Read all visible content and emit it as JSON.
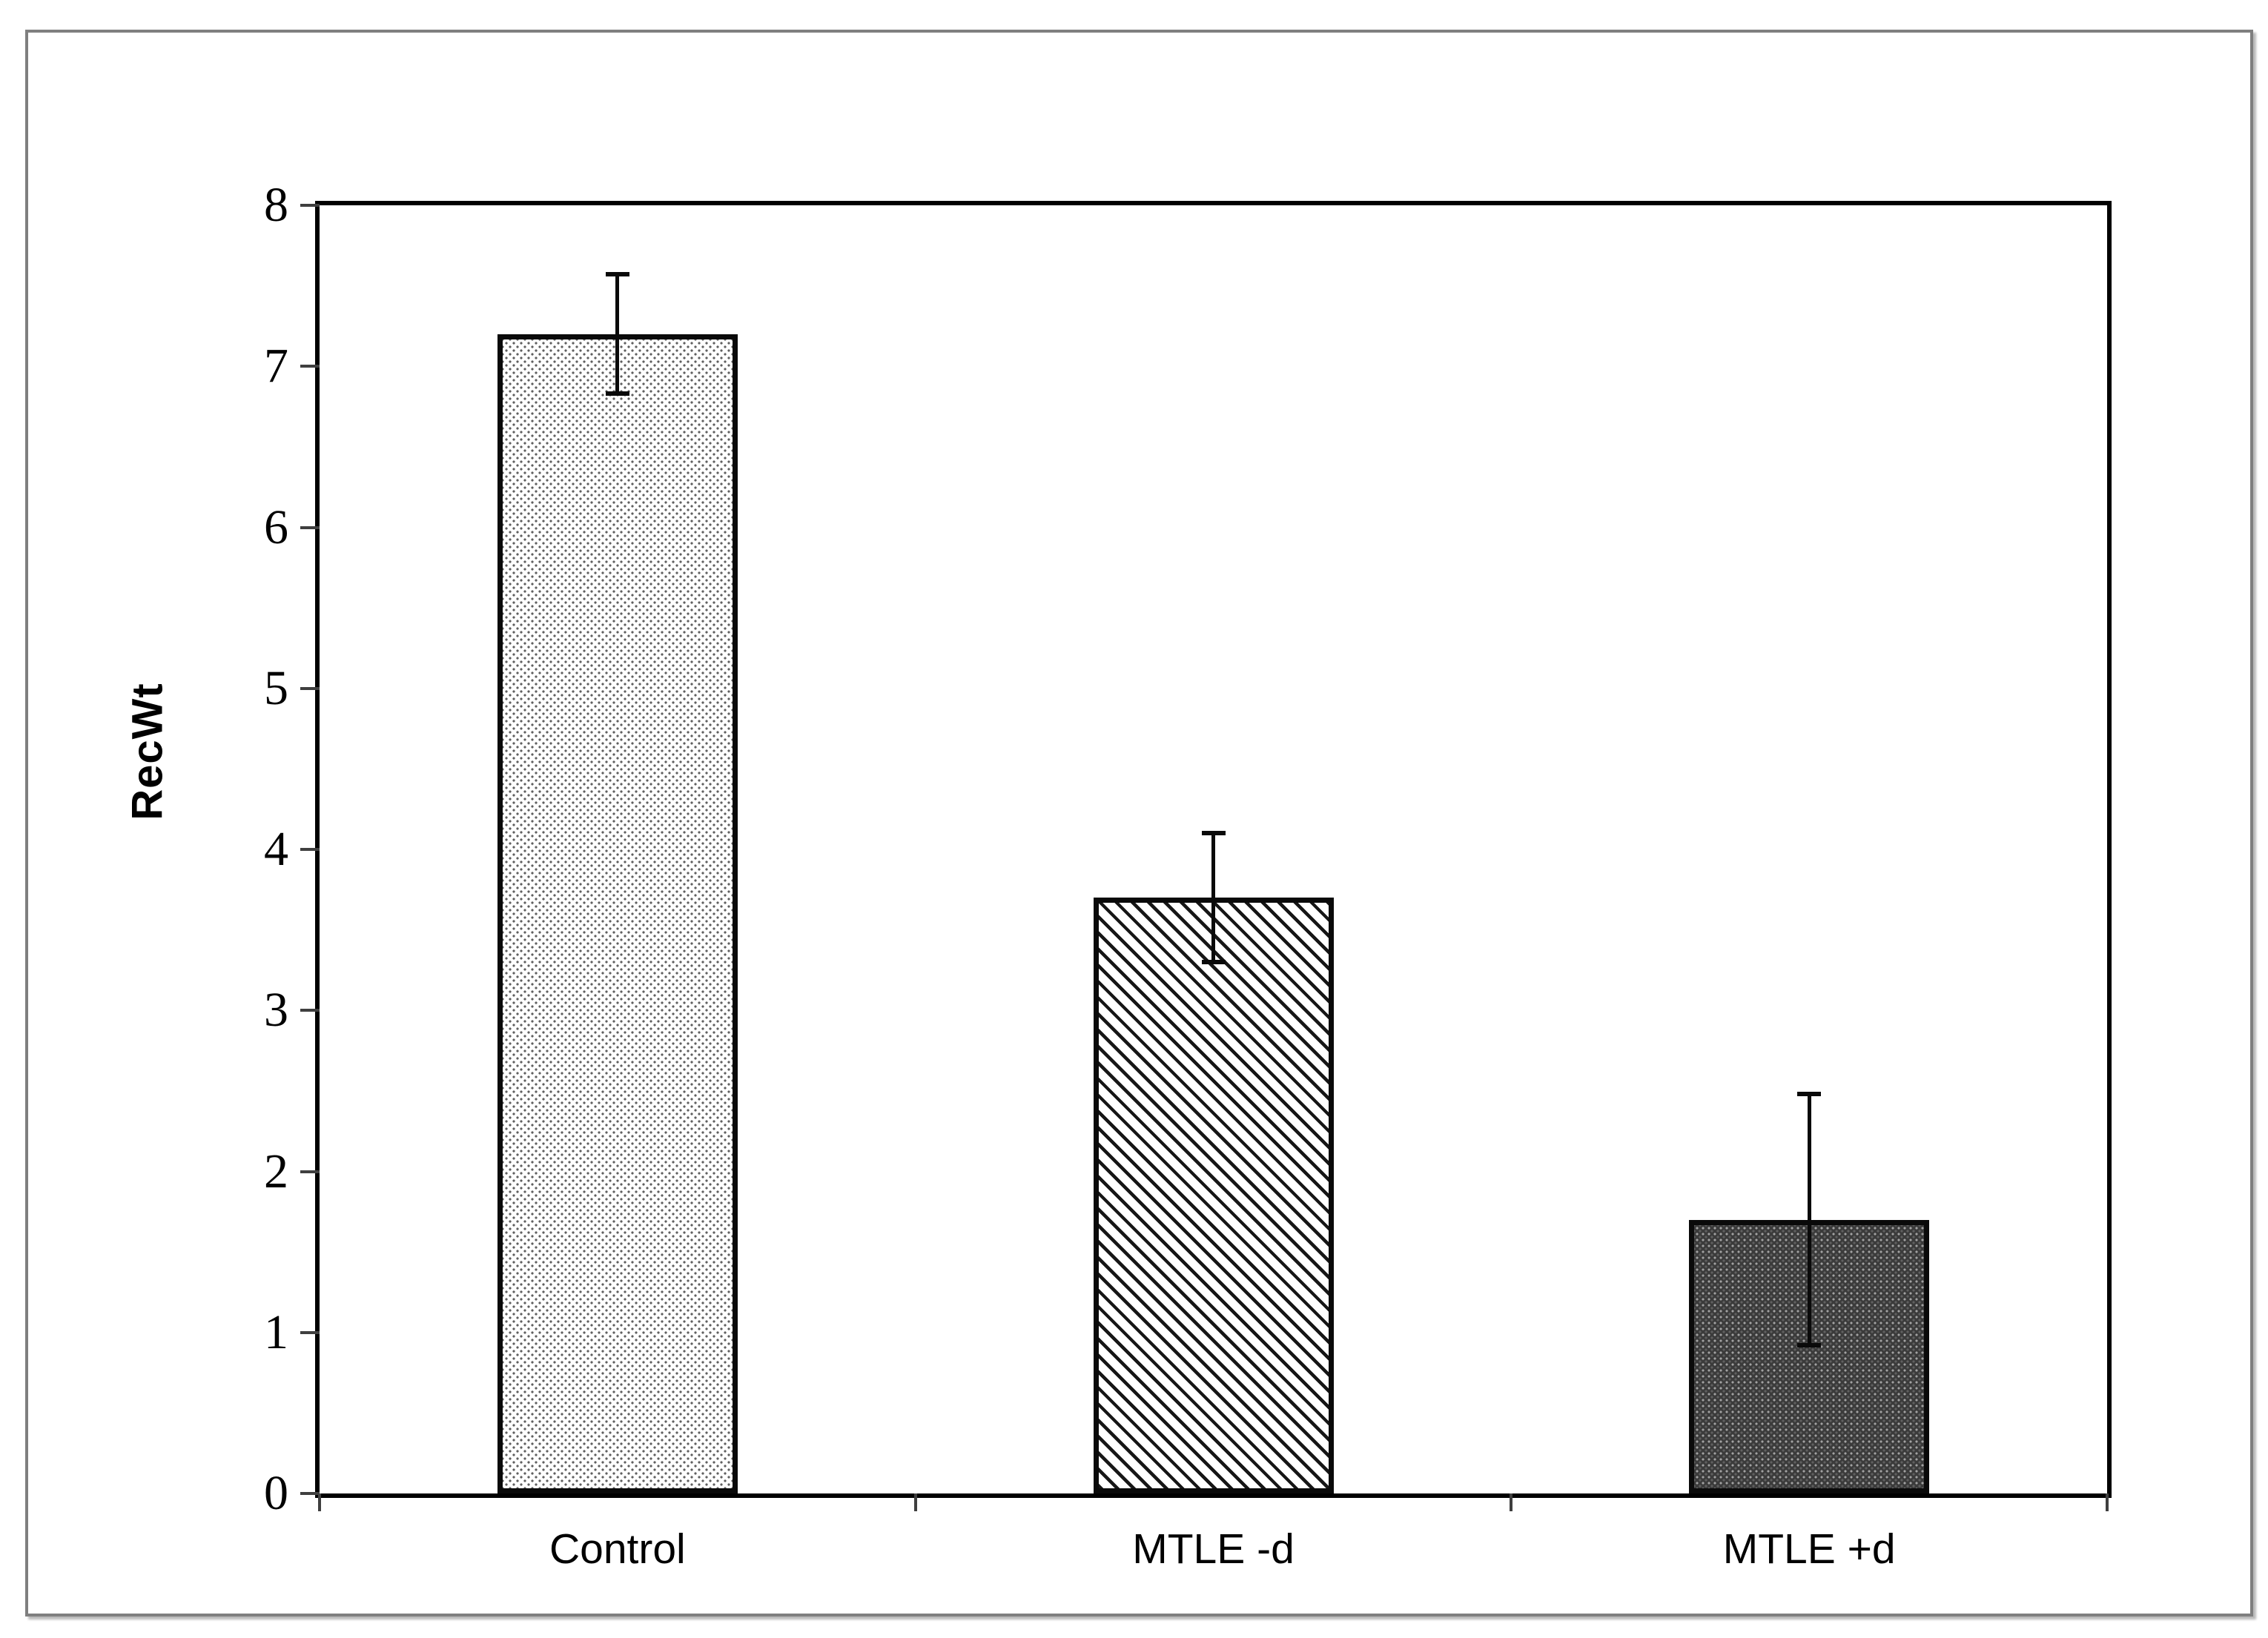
{
  "figure": {
    "background_color": "#ffffff",
    "frame_border_color": "#7f7f7f"
  },
  "chart_data": {
    "type": "bar",
    "title": "",
    "xlabel": "",
    "ylabel": "RecWt",
    "categories": [
      "Control",
      "MTLE -d",
      "MTLE +d"
    ],
    "values": [
      7.2,
      3.7,
      1.7
    ],
    "errors": [
      0.37,
      0.4,
      0.78
    ],
    "ylim": [
      0,
      8
    ],
    "yticks": [
      0,
      1,
      2,
      3,
      4,
      5,
      6,
      7,
      8
    ],
    "grid": false,
    "legend": "none",
    "bar_fill_patterns": [
      "light-gray-dots-on-white",
      "black-diagonal-stripes-on-white",
      "dark-gray-checker"
    ],
    "bar_border_color": "#000000",
    "error_bar_color": "#000000",
    "axis_color": "#000000",
    "tick_color": "#3f3f3f"
  }
}
